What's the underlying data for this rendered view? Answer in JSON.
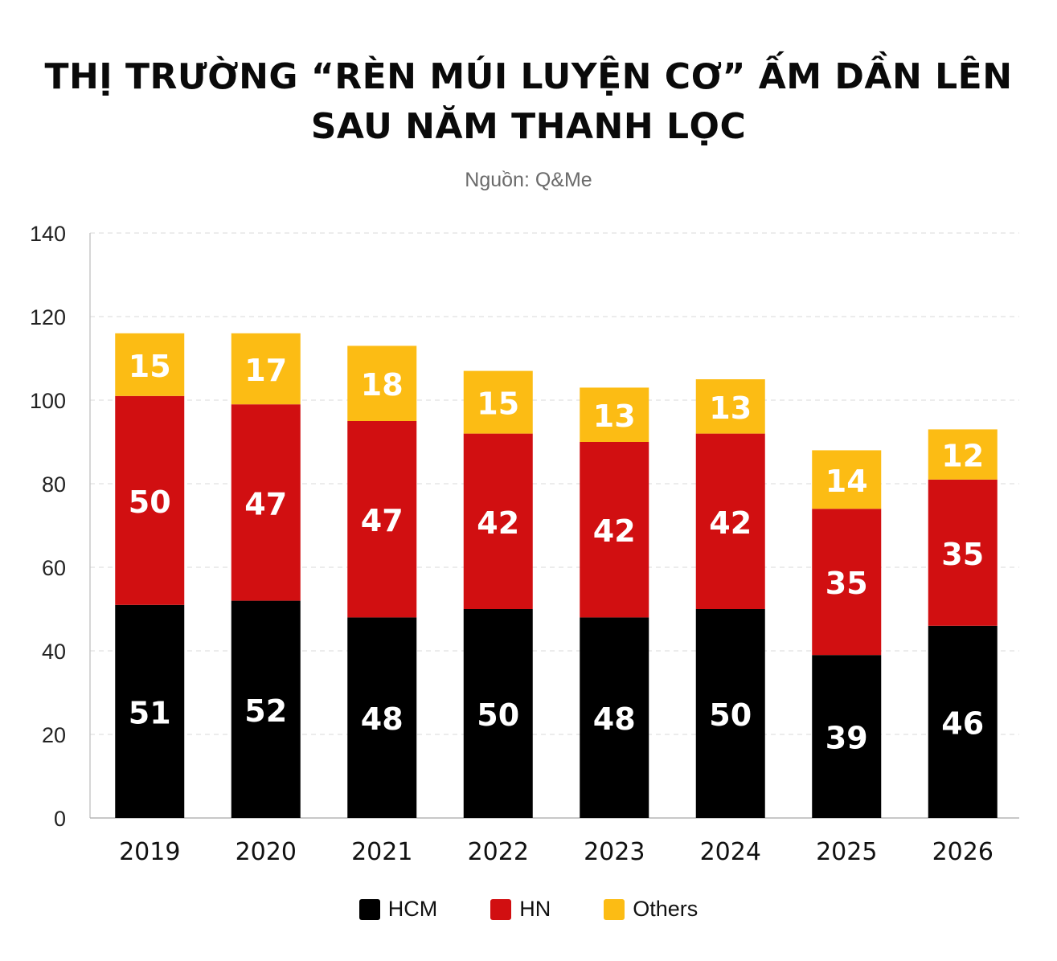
{
  "chart_data": {
    "type": "bar",
    "stacked": true,
    "title_lines": [
      "THỊ TRƯỜNG “RÈN MÚI LUYỆN CƠ” ẤM DẦN LÊN",
      "SAU NĂM THANH LỌC"
    ],
    "subtitle": "Nguồn: Q&Me",
    "categories": [
      "2019",
      "2020",
      "2021",
      "2022",
      "2023",
      "2024",
      "2025",
      "2026"
    ],
    "series": [
      {
        "name": "HCM",
        "color": "#000000",
        "values": [
          51,
          52,
          48,
          50,
          48,
          50,
          39,
          46
        ]
      },
      {
        "name": "HN",
        "color": "#d10f11",
        "values": [
          50,
          47,
          47,
          42,
          42,
          42,
          35,
          35
        ]
      },
      {
        "name": "Others",
        "color": "#fcbc14",
        "values": [
          15,
          17,
          18,
          15,
          13,
          13,
          14,
          12
        ]
      }
    ],
    "ylim": [
      0,
      140
    ],
    "yticks": [
      0,
      20,
      40,
      60,
      80,
      100,
      120,
      140
    ],
    "grid": true,
    "legend_position": "bottom"
  }
}
